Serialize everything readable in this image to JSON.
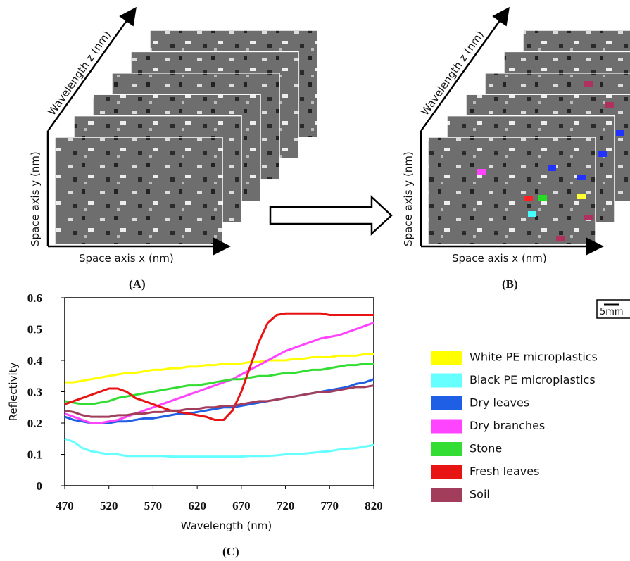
{
  "figure": {
    "wavelength_z": "Wavelength z (nm)",
    "space_y": "Space axis y (nm)",
    "space_x": "Space axis x (nm)",
    "label_a": "(A)",
    "label_b": "(B)",
    "label_c": "(C)",
    "scale_bar": "5mm"
  },
  "chart_data": {
    "type": "line",
    "x_label": "Wavelength (nm)",
    "y_label": "Reflectivity",
    "x": [
      470,
      480,
      490,
      500,
      510,
      520,
      530,
      540,
      550,
      560,
      570,
      580,
      590,
      600,
      610,
      620,
      630,
      640,
      650,
      660,
      670,
      680,
      690,
      700,
      710,
      720,
      730,
      740,
      750,
      760,
      770,
      780,
      790,
      800,
      810,
      820
    ],
    "xlim": [
      470,
      820
    ],
    "xticks": [
      470,
      520,
      570,
      620,
      670,
      720,
      770,
      820
    ],
    "ylim": [
      0,
      0.6
    ],
    "yticks": [
      0,
      0.1,
      0.2,
      0.3,
      0.4,
      0.5,
      0.6
    ],
    "series": [
      {
        "name": "White PE microplastics",
        "color": "#ffff00",
        "values": [
          0.33,
          0.33,
          0.335,
          0.34,
          0.345,
          0.35,
          0.355,
          0.36,
          0.36,
          0.365,
          0.37,
          0.37,
          0.375,
          0.375,
          0.38,
          0.38,
          0.385,
          0.385,
          0.39,
          0.39,
          0.39,
          0.395,
          0.395,
          0.4,
          0.4,
          0.4,
          0.405,
          0.405,
          0.41,
          0.41,
          0.41,
          0.415,
          0.415,
          0.415,
          0.42,
          0.42
        ]
      },
      {
        "name": "Black PE microplastics",
        "color": "#66ffff",
        "values": [
          0.15,
          0.14,
          0.12,
          0.11,
          0.105,
          0.1,
          0.1,
          0.095,
          0.095,
          0.095,
          0.095,
          0.095,
          0.093,
          0.093,
          0.093,
          0.093,
          0.093,
          0.093,
          0.093,
          0.093,
          0.093,
          0.095,
          0.095,
          0.095,
          0.097,
          0.1,
          0.1,
          0.102,
          0.105,
          0.108,
          0.11,
          0.115,
          0.118,
          0.12,
          0.125,
          0.13
        ]
      },
      {
        "name": "Dry leaves",
        "color": "#1f5fe6",
        "values": [
          0.22,
          0.21,
          0.205,
          0.2,
          0.2,
          0.2,
          0.205,
          0.205,
          0.21,
          0.215,
          0.215,
          0.22,
          0.225,
          0.23,
          0.23,
          0.235,
          0.24,
          0.245,
          0.25,
          0.25,
          0.255,
          0.26,
          0.265,
          0.27,
          0.275,
          0.28,
          0.285,
          0.29,
          0.295,
          0.3,
          0.305,
          0.31,
          0.315,
          0.325,
          0.33,
          0.34
        ]
      },
      {
        "name": "Dry branches",
        "color": "#ff44ff",
        "values": [
          0.23,
          0.22,
          0.21,
          0.2,
          0.2,
          0.205,
          0.21,
          0.22,
          0.23,
          0.24,
          0.25,
          0.26,
          0.27,
          0.28,
          0.29,
          0.3,
          0.31,
          0.32,
          0.33,
          0.34,
          0.355,
          0.37,
          0.385,
          0.4,
          0.415,
          0.43,
          0.44,
          0.45,
          0.46,
          0.47,
          0.475,
          0.48,
          0.49,
          0.5,
          0.51,
          0.52
        ]
      },
      {
        "name": "Stone",
        "color": "#33dd33",
        "values": [
          0.27,
          0.265,
          0.26,
          0.26,
          0.265,
          0.27,
          0.28,
          0.285,
          0.29,
          0.295,
          0.3,
          0.305,
          0.31,
          0.315,
          0.32,
          0.32,
          0.325,
          0.33,
          0.335,
          0.34,
          0.34,
          0.345,
          0.35,
          0.35,
          0.355,
          0.36,
          0.36,
          0.365,
          0.37,
          0.37,
          0.375,
          0.38,
          0.385,
          0.385,
          0.39,
          0.39
        ]
      },
      {
        "name": "Fresh leaves",
        "color": "#e81414",
        "values": [
          0.26,
          0.27,
          0.28,
          0.29,
          0.3,
          0.31,
          0.31,
          0.3,
          0.28,
          0.27,
          0.26,
          0.25,
          0.24,
          0.235,
          0.23,
          0.225,
          0.22,
          0.21,
          0.21,
          0.24,
          0.3,
          0.38,
          0.46,
          0.52,
          0.545,
          0.55,
          0.55,
          0.55,
          0.55,
          0.55,
          0.545,
          0.545,
          0.545,
          0.545,
          0.545,
          0.545
        ]
      },
      {
        "name": "Soil",
        "color": "#a33d5c",
        "values": [
          0.24,
          0.235,
          0.225,
          0.22,
          0.22,
          0.22,
          0.225,
          0.225,
          0.23,
          0.23,
          0.235,
          0.235,
          0.24,
          0.24,
          0.245,
          0.245,
          0.25,
          0.25,
          0.255,
          0.255,
          0.26,
          0.265,
          0.27,
          0.27,
          0.275,
          0.28,
          0.285,
          0.29,
          0.295,
          0.3,
          0.3,
          0.305,
          0.31,
          0.315,
          0.315,
          0.32
        ]
      }
    ]
  }
}
